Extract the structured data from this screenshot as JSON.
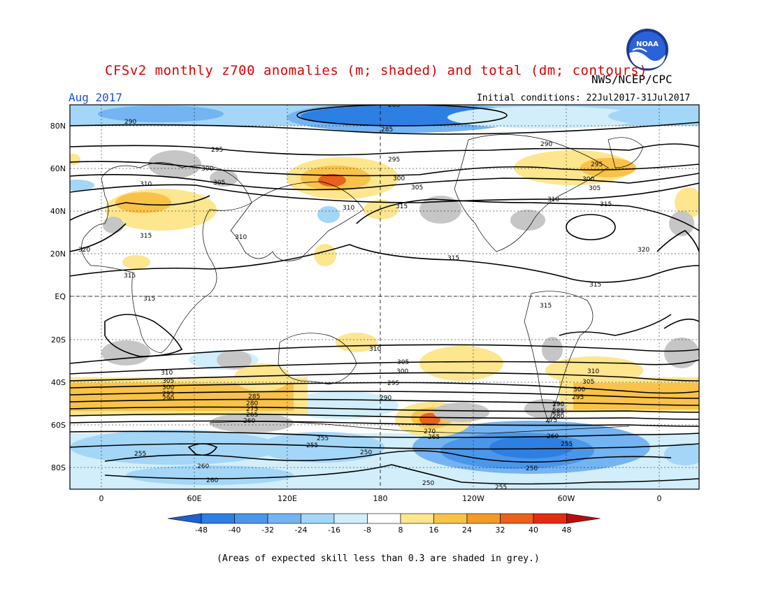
{
  "header": {
    "title": "CFSv2 monthly z700 anomalies (m; shaded) and total (dm; contours)",
    "agency": "NWS/NCEP/CPC",
    "month": "Aug 2017",
    "initial_conditions": "Initial conditions: 22Jul2017-31Jul2017"
  },
  "logo": {
    "icon": "noaa-logo-icon",
    "text": "NOAA"
  },
  "axes": {
    "lat_labels": [
      "80N",
      "60N",
      "40N",
      "20N",
      "EQ",
      "20S",
      "40S",
      "60S",
      "80S"
    ],
    "lon_labels": [
      "0",
      "60E",
      "120E",
      "180",
      "120W",
      "60W",
      "0"
    ]
  },
  "contour_labels": {
    "c290": "290",
    "c295": "295",
    "c300": "300",
    "c305": "305",
    "c310": "310",
    "c315": "315",
    "c320": "320",
    "c285": "285",
    "c280": "280",
    "c275": "275",
    "c270": "270",
    "c265": "265",
    "c260": "260",
    "c255": "255",
    "c250": "250"
  },
  "colorbar": {
    "values": [
      "-48",
      "-40",
      "-32",
      "-24",
      "-16",
      "-8",
      "8",
      "16",
      "24",
      "32",
      "40",
      "48"
    ],
    "colors": [
      "#1e5fd0",
      "#2e7fe3",
      "#4a97ea",
      "#74b4f2",
      "#a4d6f7",
      "#d2eefa",
      "#ffffff",
      "#fde68e",
      "#f9c24a",
      "#f29a2a",
      "#e9611c",
      "#e22c12",
      "#bb0c0c"
    ]
  },
  "footnote": "(Areas of expected skill less than 0.3 are shaded in grey.)"
}
